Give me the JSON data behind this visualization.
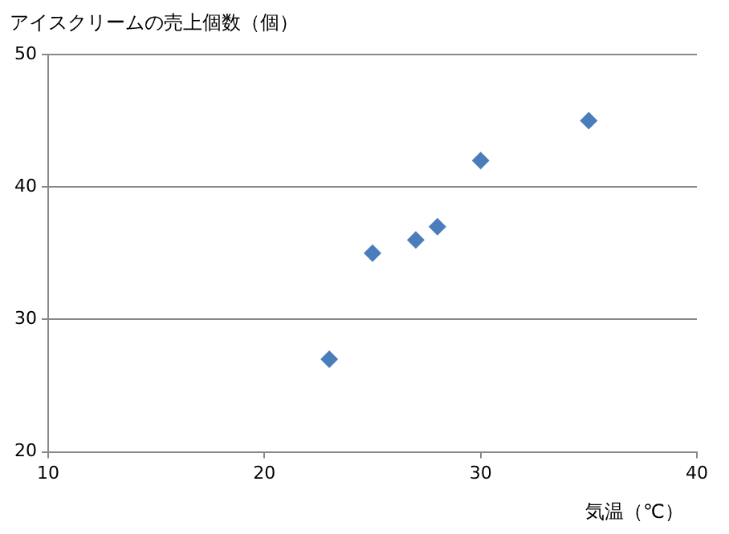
{
  "chart_data": {
    "type": "scatter",
    "ylabel": "アイスクリームの売上個数（個）",
    "xlabel": "気温（℃）",
    "x": [
      23,
      25,
      27,
      28,
      30,
      35
    ],
    "series": [
      {
        "color": "#4a7ebb",
        "values": [
          27,
          35,
          36,
          37,
          42,
          45
        ]
      }
    ],
    "xlim": [
      10,
      40
    ],
    "xticks": [
      10,
      20,
      30,
      40
    ],
    "ylim": [
      20,
      50
    ],
    "yticks": [
      20,
      30,
      40,
      50
    ],
    "grid": "y",
    "legend": false,
    "marker": "diamond"
  }
}
